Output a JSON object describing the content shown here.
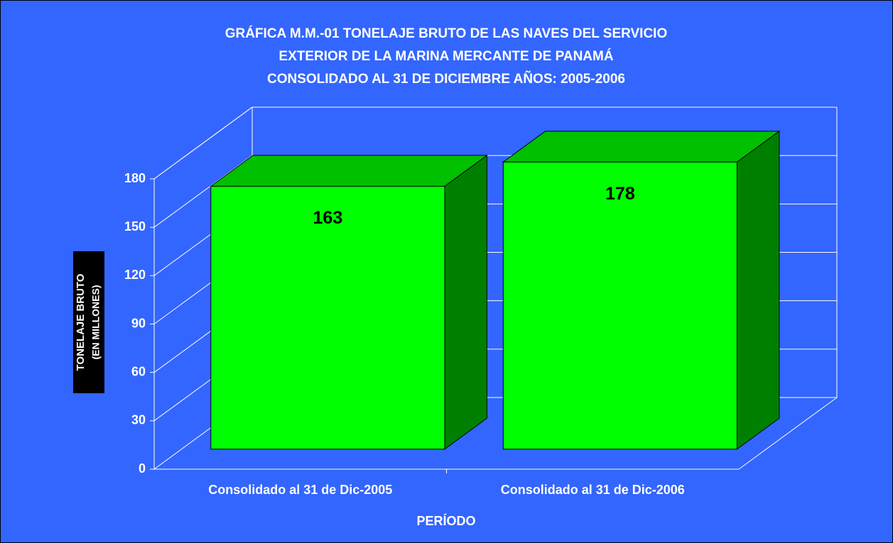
{
  "chart_data": {
    "type": "bar3d",
    "title": [
      "GRÁFICA M.M.-01 TONELAJE BRUTO DE LAS NAVES DEL SERVICIO",
      "EXTERIOR DE LA MARINA MERCANTE DE PANAMÁ",
      "CONSOLIDADO AL 31 DE DICIEMBRE AÑOS: 2005-2006"
    ],
    "y_label": [
      "TONELAJE BRUTO",
      "(EN MILLONES)"
    ],
    "x_label": "PERÍODO",
    "categories": [
      "Consolidado al 31 de Dic-2005",
      "Consolidado al 31 de Dic-2006"
    ],
    "values": [
      163,
      178
    ],
    "color": "#00ff00",
    "ylim": [
      0,
      180
    ],
    "yticks": [
      0,
      30,
      60,
      90,
      120,
      150,
      180
    ],
    "grid": true
  }
}
